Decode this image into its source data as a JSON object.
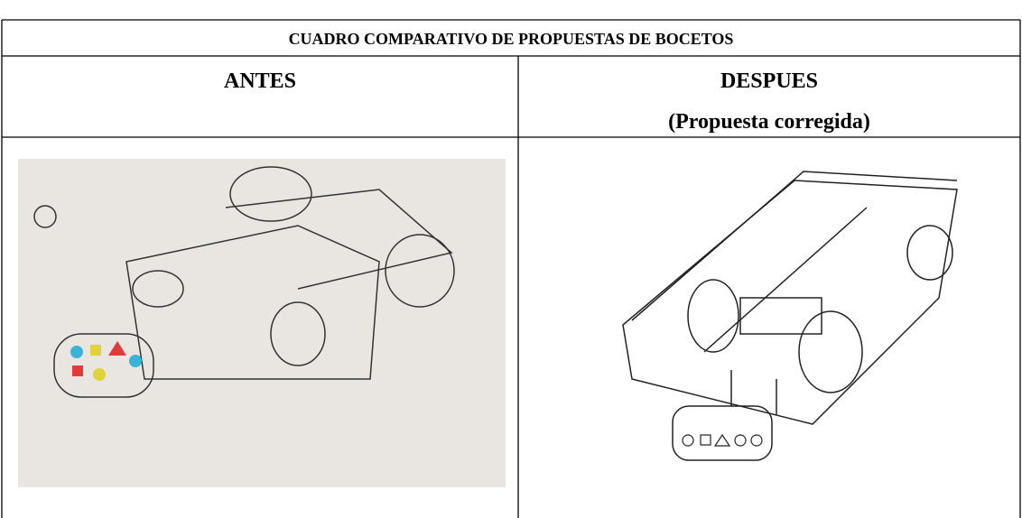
{
  "table": {
    "title": "CUADRO COMPARATIVO DE PROPUESTAS DE BOCETOS",
    "columns": [
      {
        "heading": "ANTES"
      },
      {
        "heading": "DESPUES",
        "subheading": "(Propuesta corregida)"
      }
    ]
  }
}
